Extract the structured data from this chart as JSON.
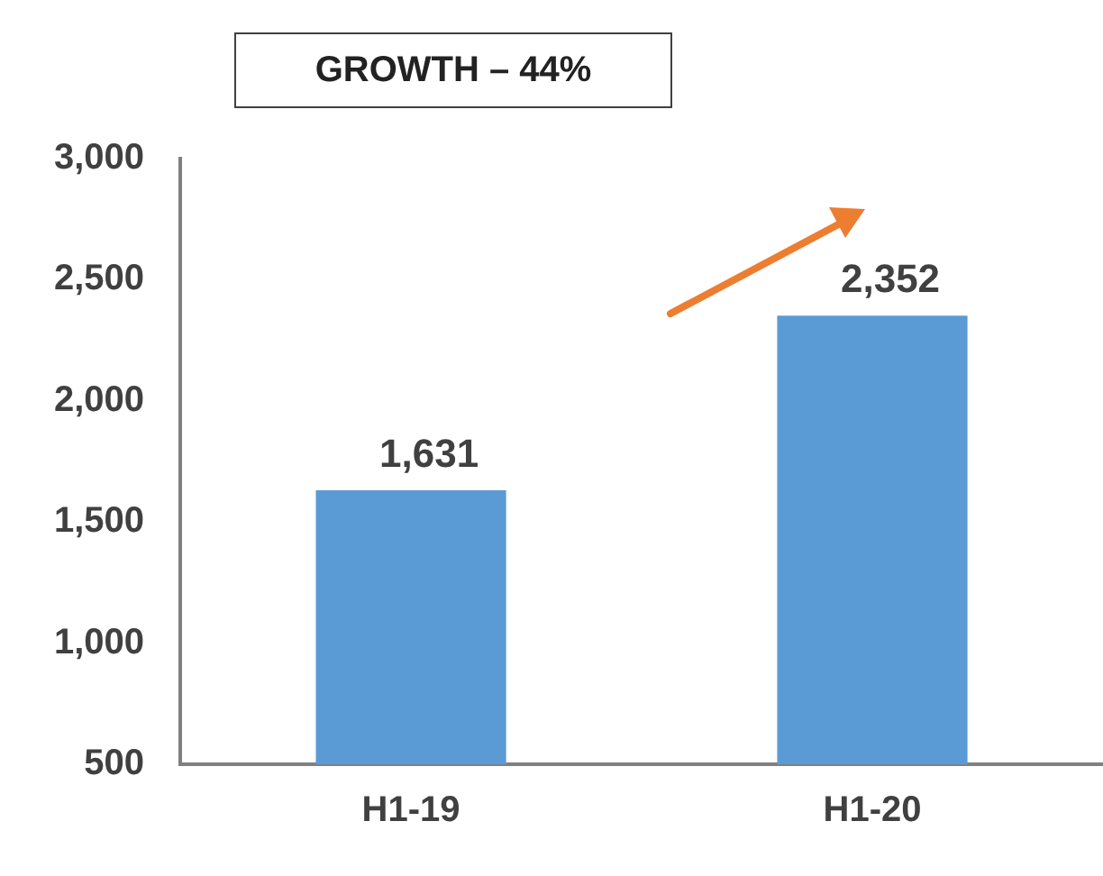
{
  "chart_data": {
    "type": "bar",
    "categories": [
      "H1-19",
      "H1-20"
    ],
    "values": [
      1631,
      2352
    ],
    "color": "#5b9bd5",
    "ylim": [
      500,
      3000
    ],
    "yticks": [
      {
        "value": 500,
        "label": "500"
      },
      {
        "value": 1000,
        "label": "1,000"
      },
      {
        "value": 1500,
        "label": "1,500"
      },
      {
        "value": 2000,
        "label": "2,000"
      },
      {
        "value": 2500,
        "label": "2,500"
      },
      {
        "value": 3000,
        "label": "3,000"
      }
    ],
    "value_labels": [
      "1,631",
      "2,352"
    ],
    "annotations": [
      "GROWTH – 44%"
    ],
    "grid": false,
    "legend": false
  }
}
